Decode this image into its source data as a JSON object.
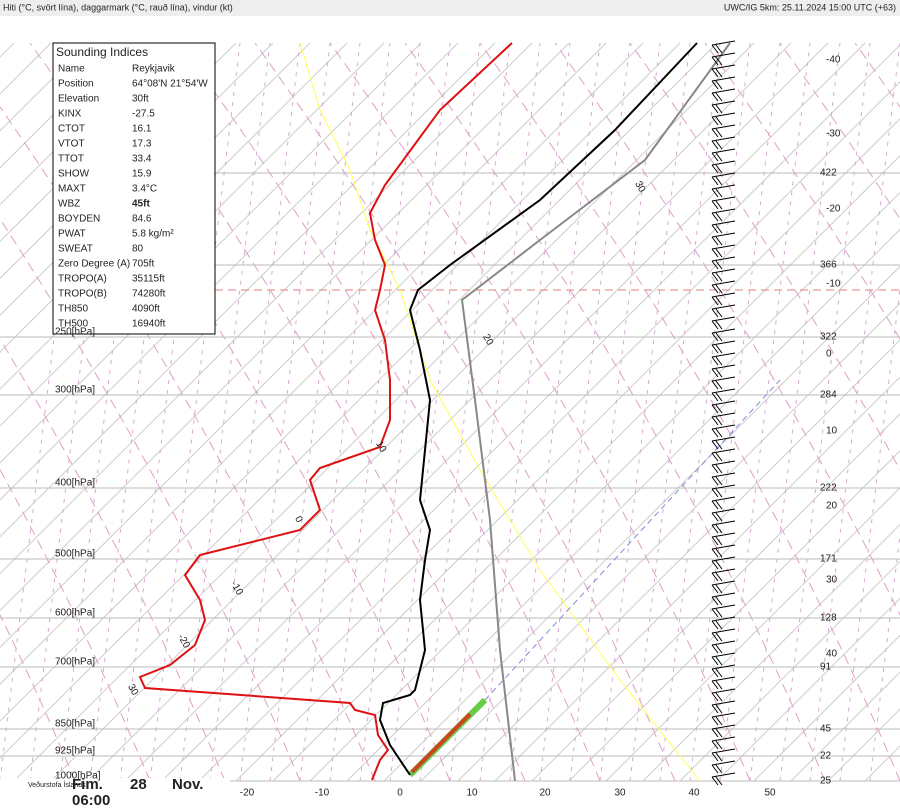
{
  "header": {
    "left": "Hiti (°C, svört lína), daggarmark (°C, rauð lína), vindur (kt)",
    "right": "UWC/IG 5km: 25.11.2024 15:00 UTC (+63)"
  },
  "indices": {
    "title": "Sounding Indices",
    "rows": [
      [
        "Name",
        "Reykjavik"
      ],
      [
        "Position",
        "64°08'N 21°54'W"
      ],
      [
        "Elevation",
        "30ft"
      ],
      [
        "KINX",
        "-27.5"
      ],
      [
        "CTOT",
        "16.1"
      ],
      [
        "VTOT",
        "17.3"
      ],
      [
        "TTOT",
        "33.4"
      ],
      [
        "SHOW",
        "15.9"
      ],
      [
        "MAXT",
        "3.4°C"
      ],
      [
        "WBZ",
        "45ft"
      ],
      [
        "BOYDEN",
        "84.6"
      ],
      [
        "PWAT",
        "5.8 kg/m²"
      ],
      [
        "SWEAT",
        "80"
      ],
      [
        "Zero Degree (A)",
        "705ft"
      ],
      [
        "TROPO(A)",
        "35115ft"
      ],
      [
        "TROPO(B)",
        "74280ft"
      ],
      [
        "TH850",
        "4090ft"
      ],
      [
        "TH500",
        "16940ft"
      ]
    ]
  },
  "pressure_labels": [
    "250[hPa]",
    "300[hPa]",
    "400[hPa]",
    "500[hPa]",
    "600[hPa]",
    "700[hPa]",
    "850[hPa]",
    "925[hPa]",
    "1000[hPa]"
  ],
  "right_labels": [
    "-40",
    "-30",
    "422",
    "-20",
    "366",
    "-10",
    "322",
    "0",
    "284",
    "10",
    "222",
    "20",
    "171",
    "30",
    "128",
    "40",
    "91",
    "45",
    "22",
    "25"
  ],
  "bottom_labels": [
    "-20",
    "-10",
    "0",
    "10",
    "20",
    "30",
    "40",
    "50"
  ],
  "isotherm_labels": [
    "30",
    "20",
    "10",
    "0",
    "-10",
    "-20",
    "30"
  ],
  "footer": {
    "logo": "Veðurstofa Íslands",
    "day": "Fim.",
    "date": "28",
    "month": "Nov.",
    "time": "06:00"
  }
}
